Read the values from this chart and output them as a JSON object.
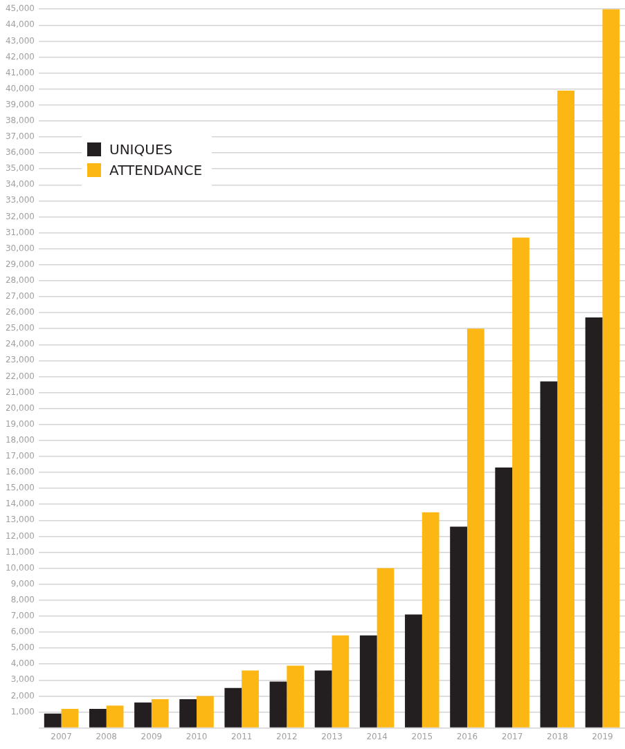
{
  "chart_data": {
    "type": "bar",
    "categories": [
      "2007",
      "2008",
      "2009",
      "2010",
      "2011",
      "2012",
      "2013",
      "2014",
      "2015",
      "2016",
      "2017",
      "2018",
      "2019"
    ],
    "series": [
      {
        "name": "UNIQUES",
        "color": "#231f20",
        "values": [
          900,
          1200,
          1600,
          1800,
          2500,
          2900,
          3600,
          5800,
          7100,
          12600,
          16300,
          21700,
          25700
        ]
      },
      {
        "name": "ATTENDANCE",
        "color": "#fdb714",
        "values": [
          1200,
          1400,
          1800,
          2000,
          3600,
          3900,
          5800,
          10000,
          13500,
          25000,
          30700,
          39900,
          45000
        ]
      }
    ],
    "ylim": [
      0,
      45000
    ],
    "yticks": [
      {
        "value": 0,
        "label": null
      },
      {
        "value": 1000,
        "label": "1,000"
      },
      {
        "value": 2000,
        "label": "2,000"
      },
      {
        "value": 3000,
        "label": "3,000"
      },
      {
        "value": 4000,
        "label": "4,000"
      },
      {
        "value": 5000,
        "label": "5,000"
      },
      {
        "value": 6000,
        "label": "6,000"
      },
      {
        "value": 7000,
        "label": "7,000"
      },
      {
        "value": 8000,
        "label": "8,000"
      },
      {
        "value": 9000,
        "label": "9,000"
      },
      {
        "value": 10000,
        "label": "10,000"
      },
      {
        "value": 11000,
        "label": "11,000"
      },
      {
        "value": 12000,
        "label": "12,000"
      },
      {
        "value": 13000,
        "label": "13,000"
      },
      {
        "value": 14000,
        "label": "14,000"
      },
      {
        "value": 15000,
        "label": "15,000"
      },
      {
        "value": 16000,
        "label": "16,000"
      },
      {
        "value": 17000,
        "label": "17,000"
      },
      {
        "value": 18000,
        "label": "18,000"
      },
      {
        "value": 19000,
        "label": "19,000"
      },
      {
        "value": 20000,
        "label": "20,000"
      },
      {
        "value": 21000,
        "label": "21,000"
      },
      {
        "value": 22000,
        "label": "22,000"
      },
      {
        "value": 23000,
        "label": "23,000"
      },
      {
        "value": 24000,
        "label": "24,000"
      },
      {
        "value": 25000,
        "label": "25,000"
      },
      {
        "value": 26000,
        "label": "26,000"
      },
      {
        "value": 27000,
        "label": "27,000"
      },
      {
        "value": 28000,
        "label": "28,000"
      },
      {
        "value": 29000,
        "label": "29,000"
      },
      {
        "value": 30000,
        "label": "30,000"
      },
      {
        "value": 31000,
        "label": "31,000"
      },
      {
        "value": 32000,
        "label": "32,000"
      },
      {
        "value": 33000,
        "label": "33,000"
      },
      {
        "value": 34000,
        "label": "34,000"
      },
      {
        "value": 35000,
        "label": "35,000"
      },
      {
        "value": 36000,
        "label": "36,000"
      },
      {
        "value": 37000,
        "label": "37,000"
      },
      {
        "value": 38000,
        "label": "38,000"
      },
      {
        "value": 39000,
        "label": "39,000"
      },
      {
        "value": 40000,
        "label": "40,000"
      },
      {
        "value": 41000,
        "label": "41,000"
      },
      {
        "value": 42000,
        "label": "42,000"
      },
      {
        "value": 43000,
        "label": "43,000"
      },
      {
        "value": 44000,
        "label": "44,000"
      },
      {
        "value": 45000,
        "label": "45,000"
      }
    ],
    "grid": "y",
    "legend": "top left"
  }
}
